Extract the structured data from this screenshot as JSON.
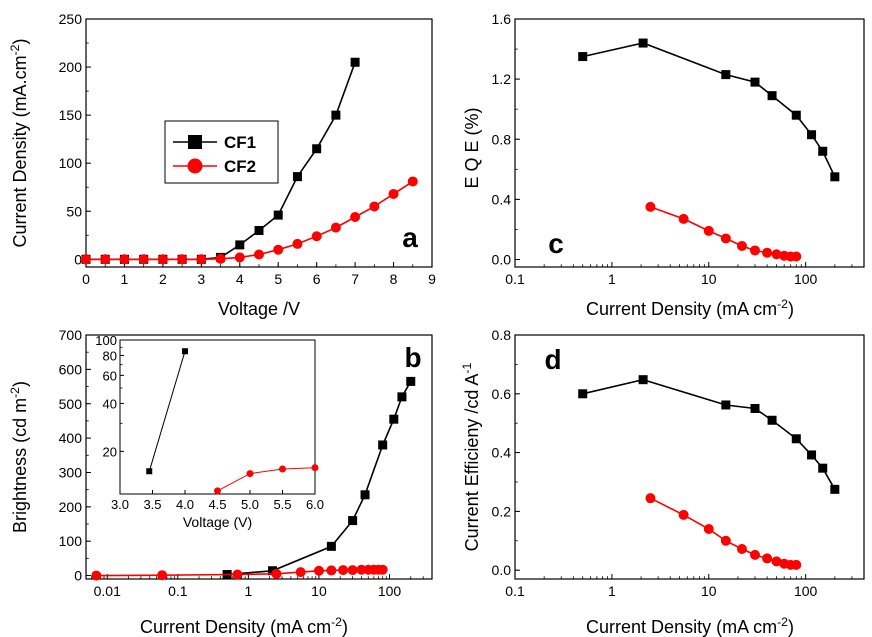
{
  "chart_data": [
    {
      "panel": "a",
      "type": "line",
      "xlabel": "Voltage /V",
      "ylabel": "Current Density (mA.cm",
      "ylabel_sup": "-2",
      "ylabel_tail": ")",
      "xlim": [
        0,
        9
      ],
      "ylim": [
        -8,
        250
      ],
      "x_ticks": [
        0,
        1,
        2,
        3,
        4,
        5,
        6,
        7,
        8,
        9
      ],
      "y_ticks": [
        0,
        50,
        100,
        150,
        200,
        250
      ],
      "legend": {
        "placement": "top-left",
        "entries": [
          "CF1",
          "CF2"
        ]
      },
      "series": [
        {
          "name": "CF1",
          "color": "#000000",
          "marker": "square",
          "x": [
            0,
            0.5,
            1,
            1.5,
            2,
            2.5,
            3,
            3.5,
            4,
            4.5,
            5,
            5.5,
            6,
            6.5,
            7
          ],
          "y": [
            0,
            0,
            0,
            0,
            0,
            0,
            0,
            2,
            15,
            30,
            46,
            86,
            115,
            150,
            205
          ]
        },
        {
          "name": "CF2",
          "color": "#ff0000",
          "marker": "circle",
          "x": [
            0,
            0.5,
            1,
            1.5,
            2,
            2.5,
            3,
            3.5,
            4,
            4.5,
            5,
            5.5,
            6,
            6.5,
            7,
            7.5,
            8,
            8.5
          ],
          "y": [
            0,
            0,
            0,
            0,
            0,
            0,
            0,
            0.5,
            2,
            5,
            10,
            16,
            24,
            33,
            44,
            55,
            68,
            81
          ]
        }
      ]
    },
    {
      "panel": "b",
      "type": "line",
      "xscale": "log",
      "xlabel": "Current Density (mA cm",
      "xlabel_sup": "-2",
      "xlabel_tail": ")",
      "ylabel": "Brightness (cd m",
      "ylabel_sup": "-2",
      "ylabel_tail": ")",
      "xlim": [
        0.005,
        400
      ],
      "ylim": [
        -10,
        700
      ],
      "x_ticks": [
        0.01,
        0.1,
        1,
        10,
        100
      ],
      "x_tick_labels": [
        "0.01",
        "0.1",
        "1",
        "10",
        "100"
      ],
      "y_ticks": [
        0,
        100,
        200,
        300,
        400,
        500,
        600,
        700
      ],
      "series": [
        {
          "name": "CF1",
          "color": "#000000",
          "marker": "square",
          "x": [
            0.5,
            2.2,
            15,
            30,
            45,
            80,
            115,
            150,
            200
          ],
          "y": [
            3,
            14,
            85,
            160,
            235,
            380,
            455,
            520,
            565
          ]
        },
        {
          "name": "CF2",
          "color": "#ff0000",
          "marker": "circle",
          "x": [
            0.007,
            0.06,
            0.7,
            2.5,
            5.5,
            10,
            15,
            22,
            30,
            40,
            50,
            60,
            70,
            80
          ],
          "y": [
            0,
            1,
            3,
            5,
            10,
            14,
            15,
            16,
            16,
            17,
            17,
            17,
            17,
            17
          ]
        }
      ],
      "inset": {
        "type": "line",
        "yscale": "log",
        "xlabel": "Voltage (V)",
        "xlim": [
          3.0,
          6.0
        ],
        "ylim": [
          10.8,
          100
        ],
        "x_ticks": [
          3.0,
          3.5,
          4.0,
          4.5,
          5.0,
          5.5,
          6.0
        ],
        "x_tick_labels": [
          "3.0",
          "3.5",
          "4.0",
          "4.5",
          "5.0",
          "5.5",
          "6.0"
        ],
        "y_ticks": [
          20,
          40,
          60,
          80,
          100
        ],
        "series": [
          {
            "name": "CF1",
            "color": "#000000",
            "marker": "square",
            "x": [
              3.45,
              4.0
            ],
            "y": [
              15,
              85
            ]
          },
          {
            "name": "CF2",
            "color": "#ff0000",
            "marker": "circle",
            "x": [
              4.5,
              5.0,
              5.5,
              6.0
            ],
            "y": [
              11.3,
              14.5,
              15.5,
              15.8
            ]
          }
        ]
      }
    },
    {
      "panel": "c",
      "type": "line",
      "xscale": "log",
      "xlabel": "Current Density (mA cm",
      "xlabel_sup": "-2",
      "xlabel_tail": ")",
      "ylabel": "E Q E (%)",
      "xlim": [
        0.1,
        400
      ],
      "ylim": [
        -0.05,
        1.6
      ],
      "x_ticks": [
        0.1,
        1,
        10,
        100
      ],
      "x_tick_labels": [
        "0.1",
        "1",
        "10",
        "100"
      ],
      "y_ticks": [
        0.0,
        0.4,
        0.8,
        1.2,
        1.6
      ],
      "y_tick_labels": [
        "0.0",
        "0.4",
        "0.8",
        "1.2",
        "1.6"
      ],
      "series": [
        {
          "name": "CF1",
          "color": "#000000",
          "marker": "square",
          "x": [
            0.5,
            2.1,
            15,
            30,
            45,
            80,
            115,
            150,
            200
          ],
          "y": [
            1.35,
            1.44,
            1.23,
            1.18,
            1.09,
            0.96,
            0.83,
            0.72,
            0.55
          ]
        },
        {
          "name": "CF2",
          "color": "#ff0000",
          "marker": "circle",
          "x": [
            2.5,
            5.5,
            10,
            15,
            22,
            30,
            40,
            50,
            60,
            70,
            80
          ],
          "y": [
            0.35,
            0.27,
            0.19,
            0.14,
            0.09,
            0.06,
            0.045,
            0.035,
            0.025,
            0.02,
            0.02
          ]
        }
      ]
    },
    {
      "panel": "d",
      "type": "line",
      "xscale": "log",
      "xlabel": "Current Density (mA cm",
      "xlabel_sup": "-2",
      "xlabel_tail": ")",
      "ylabel": "Current Efficieny /cd A",
      "ylabel_sup": "-1",
      "ylabel_tail": "",
      "xlim": [
        0.1,
        400
      ],
      "ylim": [
        -0.03,
        0.8
      ],
      "x_ticks": [
        0.1,
        1,
        10,
        100
      ],
      "x_tick_labels": [
        "0.1",
        "1",
        "10",
        "100"
      ],
      "y_ticks": [
        0.0,
        0.2,
        0.4,
        0.6,
        0.8
      ],
      "y_tick_labels": [
        "0.0",
        "0.2",
        "0.4",
        "0.6",
        "0.8"
      ],
      "series": [
        {
          "name": "CF1",
          "color": "#000000",
          "marker": "square",
          "x": [
            0.5,
            2.1,
            15,
            30,
            45,
            80,
            115,
            150,
            200
          ],
          "y": [
            0.6,
            0.648,
            0.562,
            0.55,
            0.51,
            0.447,
            0.392,
            0.347,
            0.275
          ]
        },
        {
          "name": "CF2",
          "color": "#ff0000",
          "marker": "circle",
          "x": [
            2.5,
            5.5,
            10,
            15,
            22,
            30,
            40,
            50,
            60,
            70,
            80
          ],
          "y": [
            0.245,
            0.188,
            0.14,
            0.1,
            0.072,
            0.052,
            0.04,
            0.03,
            0.022,
            0.018,
            0.018
          ]
        }
      ]
    }
  ]
}
